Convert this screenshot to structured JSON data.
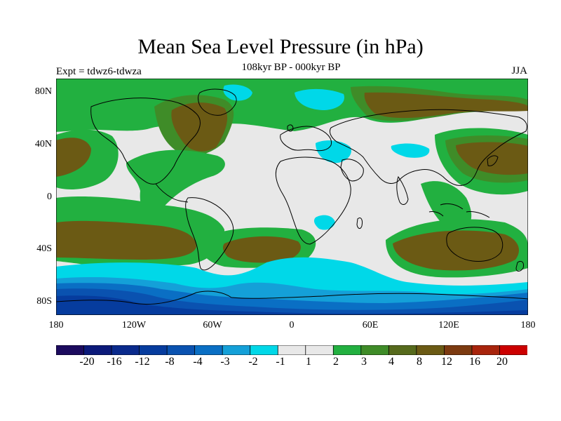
{
  "header": {
    "title": "Mean Sea Level Pressure (in hPa)",
    "subtitle": "108kyr BP - 000kyr BP",
    "left_label": "Expt = tdwz6-tdwza",
    "right_label": "JJA"
  },
  "axes": {
    "lat_ticks": [
      "80N",
      "40N",
      "0",
      "40S",
      "80S"
    ],
    "lon_ticks": [
      "180",
      "120W",
      "60W",
      "0",
      "60E",
      "120E",
      "180"
    ]
  },
  "legend": {
    "labels": [
      "-20",
      "-16",
      "-12",
      "-8",
      "-4",
      "-3",
      "-2",
      "-1",
      "1",
      "2",
      "3",
      "4",
      "8",
      "12",
      "16",
      "20"
    ],
    "colors": [
      "#1c0b5e",
      "#0c1a7a",
      "#0a2a8c",
      "#063c9e",
      "#0a52b0",
      "#0a6fc4",
      "#14a0d8",
      "#00d8e8",
      "#e8e8e8",
      "#22b040",
      "#3f8c28",
      "#566a1c",
      "#6b5a14",
      "#7c3a10",
      "#a8240c",
      "#cc0000"
    ]
  },
  "map": {
    "projection": "cylindrical-equidistant",
    "lon_range": [
      -180,
      180
    ],
    "lat_range": [
      -90,
      90
    ],
    "field_colors": {
      "ocean_neutral": "#e8e8e8",
      "green": "#22b040",
      "olive_dark": "#566a1c",
      "brown": "#6b5a14",
      "cyan": "#00d8e8",
      "blue_mid": "#14a0d8",
      "blue_dark": "#0a52b0",
      "blue_deep": "#063c9e"
    }
  }
}
